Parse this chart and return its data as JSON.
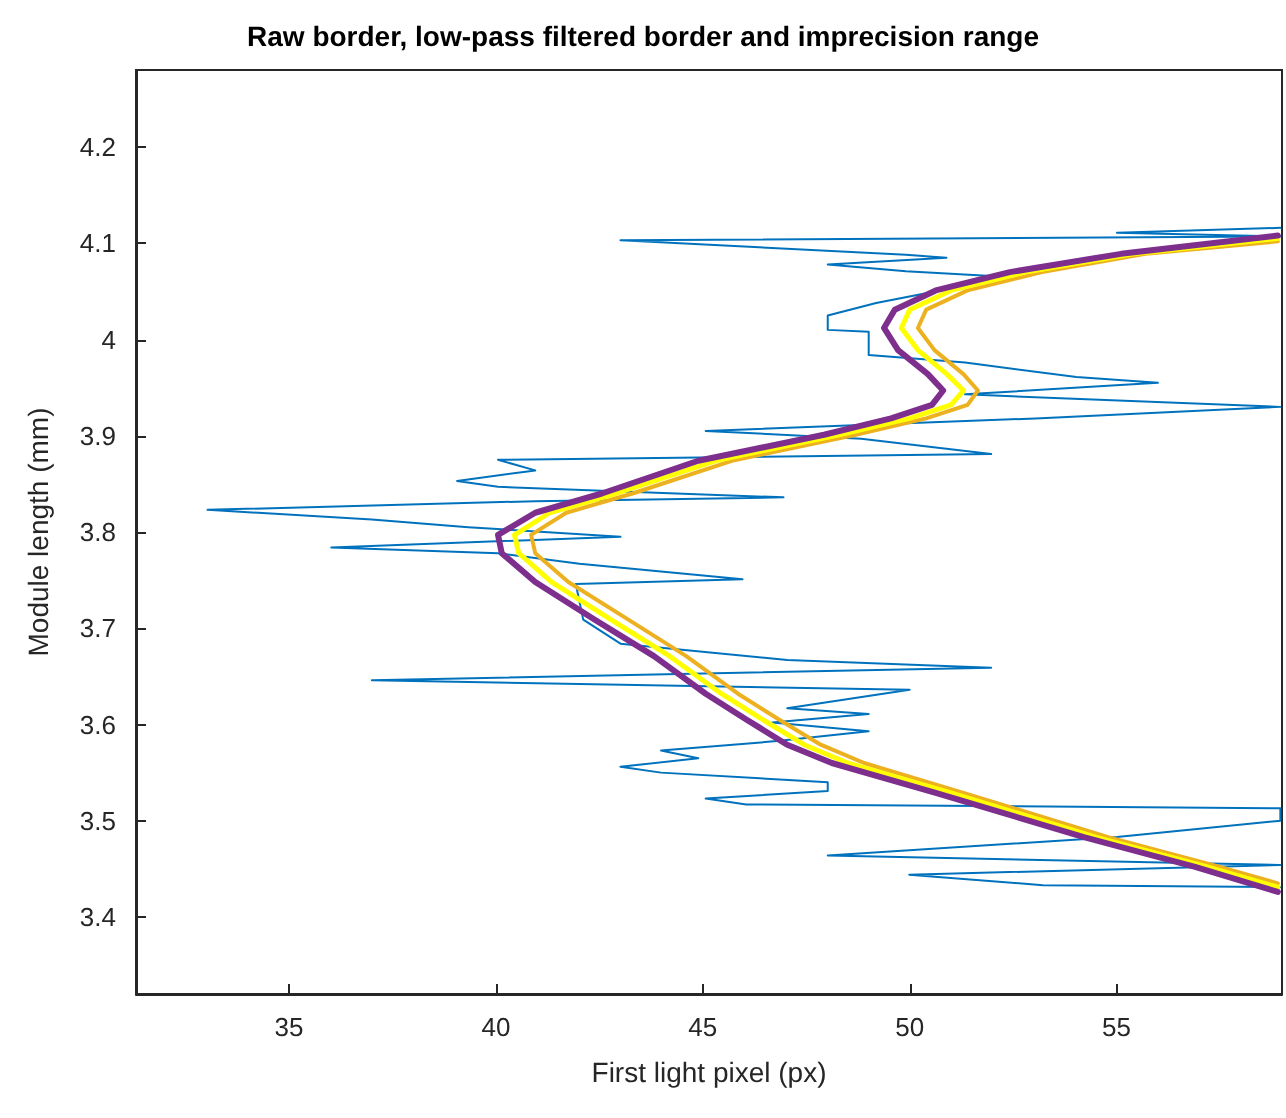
{
  "chart_data": {
    "type": "line",
    "title": "Raw border, low-pass filtered border and imprecision range",
    "xlabel": "First light pixel (px)",
    "ylabel": "Module length (mm)",
    "xlim": [
      31.3,
      59
    ],
    "xticks": [
      35,
      40,
      45,
      50,
      55
    ],
    "ylim": [
      3.32,
      4.28
    ],
    "yticks": [
      3.4,
      3.5,
      3.6,
      3.7,
      3.8,
      3.9,
      4,
      4.1,
      4.2
    ],
    "grid": false,
    "marker": "none",
    "line_style": "solid",
    "series": [
      {
        "color": "#0072bd",
        "x": [
          58.96,
          55.01,
          58.96,
          43.01,
          49.91,
          50.89,
          48.02,
          49.91,
          52.41,
          49.19,
          48.02,
          48.02,
          49.01,
          49.01,
          51.34,
          54.03,
          56.0,
          51.34,
          58.96,
          53.04,
          45.07,
          48.83,
          51.97,
          40.05,
          40.95,
          39.06,
          40.05,
          46.95,
          40.95,
          33.03,
          37.0,
          39.33,
          43.01,
          36.02,
          40.05,
          42.02,
          45.96,
          41.93,
          42.11,
          43.01,
          47.04,
          51.97,
          37.0,
          50.0,
          47.04,
          49.01,
          46.68,
          49.01,
          46.86,
          43.99,
          44.89,
          43.01,
          43.99,
          48.02,
          48.02,
          45.07,
          46.05,
          58.96,
          58.96,
          55.01,
          48.02,
          58.96,
          49.99,
          53.22,
          58.96
        ],
        "values": [
          4.116,
          4.111,
          4.107,
          4.103,
          4.088,
          4.085,
          4.078,
          4.071,
          4.065,
          4.038,
          4.025,
          4.01,
          4.008,
          3.984,
          3.976,
          3.961,
          3.955,
          3.943,
          3.93,
          3.918,
          3.905,
          3.897,
          3.881,
          3.875,
          3.864,
          3.853,
          3.847,
          3.836,
          3.832,
          3.823,
          3.813,
          3.805,
          3.795,
          3.784,
          3.778,
          3.767,
          3.751,
          3.746,
          3.709,
          3.684,
          3.667,
          3.659,
          3.646,
          3.636,
          3.617,
          3.611,
          3.602,
          3.593,
          3.583,
          3.573,
          3.565,
          3.556,
          3.55,
          3.54,
          3.531,
          3.523,
          3.517,
          3.513,
          3.5,
          3.483,
          3.464,
          3.454,
          3.444,
          3.433,
          3.431
        ]
      },
      {
        "color": "#edb120",
        "x": [
          58.9,
          55.7,
          53.2,
          51.4,
          50.4,
          50.2,
          50.6,
          51.3,
          51.65,
          51.4,
          50.4,
          48.7,
          45.7,
          43.3,
          41.7,
          40.85,
          40.95,
          41.75,
          43.2,
          44.6,
          45.85,
          46.85,
          47.85,
          48.9,
          51.3,
          54.8,
          57.5,
          58.9
        ],
        "values": [
          4.102,
          4.089,
          4.07,
          4.051,
          4.031,
          4.012,
          3.989,
          3.964,
          3.947,
          3.932,
          3.918,
          3.901,
          3.874,
          3.84,
          3.82,
          3.797,
          3.778,
          3.748,
          3.709,
          3.671,
          3.632,
          3.605,
          3.579,
          3.56,
          3.529,
          3.483,
          3.452,
          3.435
        ]
      },
      {
        "color": "#ffff00",
        "x": [
          58.9,
          55.4,
          52.8,
          51.0,
          50.0,
          49.8,
          50.2,
          50.9,
          51.3,
          51.0,
          50.0,
          48.3,
          45.3,
          42.9,
          41.3,
          40.45,
          40.55,
          41.35,
          42.78,
          44.2,
          45.45,
          46.45,
          47.45,
          48.5,
          51.0,
          54.5,
          57.2,
          58.9
        ],
        "values": [
          4.105,
          4.089,
          4.07,
          4.051,
          4.031,
          4.012,
          3.989,
          3.964,
          3.947,
          3.932,
          3.918,
          3.901,
          3.874,
          3.84,
          3.82,
          3.797,
          3.778,
          3.748,
          3.709,
          3.671,
          3.632,
          3.605,
          3.579,
          3.56,
          3.529,
          3.483,
          3.452,
          3.431
        ]
      },
      {
        "color": "#7e2f8e",
        "x": [
          58.9,
          55.11,
          52.42,
          50.63,
          49.64,
          49.38,
          49.72,
          50.44,
          50.81,
          50.54,
          49.55,
          47.93,
          44.89,
          42.56,
          40.95,
          40.05,
          40.14,
          40.95,
          42.38,
          43.82,
          45.07,
          46.06,
          47.04,
          48.12,
          50.63,
          54.21,
          56.9,
          58.9
        ],
        "values": [
          4.108,
          4.089,
          4.07,
          4.051,
          4.031,
          4.012,
          3.989,
          3.964,
          3.947,
          3.932,
          3.918,
          3.901,
          3.874,
          3.84,
          3.82,
          3.797,
          3.778,
          3.748,
          3.709,
          3.671,
          3.632,
          3.605,
          3.579,
          3.56,
          3.529,
          3.483,
          3.452,
          3.426
        ]
      }
    ]
  }
}
